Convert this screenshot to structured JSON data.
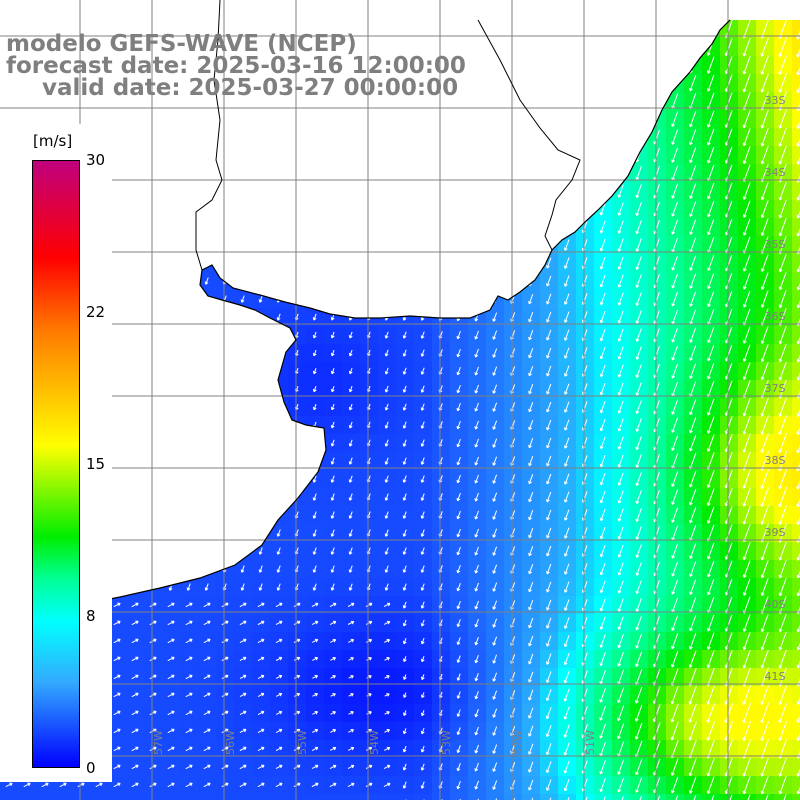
{
  "title": {
    "line1": "modelo GEFS-WAVE (NCEP)",
    "line2": "forecast date: 2025-03-16 12:00:00",
    "line3": "valid date: 2025-03-27 00:00:00"
  },
  "colorbar": {
    "unit": "[m/s]",
    "labels": [
      "30",
      "22",
      "15",
      "8",
      "0"
    ],
    "stops": [
      30,
      22,
      15,
      8,
      0
    ]
  },
  "axes": {
    "lon_labels": [
      "59W",
      "58W",
      "57W",
      "56W",
      "55W",
      "54W",
      "53W",
      "52W",
      "51W"
    ],
    "lat_labels": [
      "33S",
      "34S",
      "35S",
      "36S",
      "37S",
      "38S",
      "39S",
      "40S",
      "41S"
    ]
  },
  "colors": {
    "land": "#ffffff",
    "grid": "#808080",
    "coast": "#000000",
    "arrows": "#ffffff",
    "title": "#7f7f7f"
  },
  "chart_data": {
    "type": "heatmap",
    "variable": "wind speed and direction",
    "unit": "m/s",
    "range": [
      0,
      30
    ],
    "region_lon": [
      -60.5,
      -49.5
    ],
    "region_lat": [
      -41.2,
      -30.5
    ],
    "notes": "field estimated from image; weak winds (~0-5 m/s) over inner shelf, 9-12 m/s offshore NE, up to 15-17 m/s southeast"
  }
}
